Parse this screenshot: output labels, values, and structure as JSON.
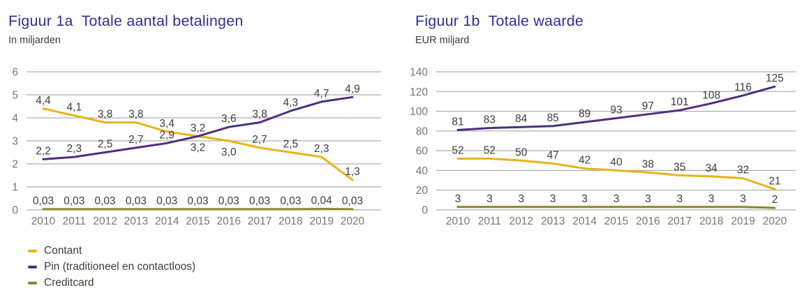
{
  "colors": {
    "title": "#2E3192",
    "text_dark": "#3C3C3B",
    "axis_text": "#767676",
    "gridline": "#9B9B9A",
    "contant": "#E9B319",
    "pin": "#4F2D7F",
    "creditcard": "#8A852C"
  },
  "legend": {
    "items": [
      {
        "label": "Contant",
        "color": "#E9B319"
      },
      {
        "label": "Pin (traditioneel en contactloos)",
        "color": "#4F2D7F"
      },
      {
        "label": "Creditcard",
        "color": "#8A852C"
      }
    ]
  },
  "chart_data": [
    {
      "type": "line",
      "title": "Figuur 1a  Totale aantal betalingen",
      "subtitle": "In miljarden",
      "xlabel": "",
      "ylabel": "In miljarden",
      "x": [
        "2010",
        "2011",
        "2012",
        "2013",
        "2014",
        "2015",
        "2016",
        "2017",
        "2018",
        "2019",
        "2020"
      ],
      "ylim": [
        0,
        6
      ],
      "ytick_step": 1,
      "grid": true,
      "legend_position": "bottom-left",
      "series": [
        {
          "name": "Contant",
          "color": "#E9B319",
          "values": [
            4.4,
            4.1,
            3.8,
            3.8,
            3.4,
            3.2,
            3.0,
            2.7,
            2.5,
            2.3,
            1.3
          ],
          "labels": [
            "4,4",
            "4,1",
            "3,8",
            "3,8",
            "3,4",
            "3,2",
            "3,0",
            "2,7",
            "2,5",
            "2,3",
            "1,3"
          ],
          "labels_below_indices": [
            5,
            6
          ]
        },
        {
          "name": "Pin (traditioneel en contactloos)",
          "color": "#4F2D7F",
          "values": [
            2.2,
            2.3,
            2.5,
            2.7,
            2.9,
            3.2,
            3.6,
            3.8,
            4.3,
            4.7,
            4.9
          ],
          "labels": [
            "2,2",
            "2,3",
            "2,5",
            "2,7",
            "2,9",
            "3,2",
            "3,6",
            "3,8",
            "4,3",
            "4,7",
            "4,9"
          ],
          "labels_below_indices": []
        },
        {
          "name": "Creditcard",
          "color": "#8A852C",
          "values": [
            0.03,
            0.03,
            0.03,
            0.03,
            0.03,
            0.03,
            0.03,
            0.03,
            0.03,
            0.04,
            0.03
          ],
          "labels": [
            "0,03",
            "0,03",
            "0,03",
            "0,03",
            "0,03",
            "0,03",
            "0,03",
            "0,03",
            "0,03",
            "0,04",
            "0,03"
          ],
          "labels_below_indices": []
        }
      ]
    },
    {
      "type": "line",
      "title": "Figuur 1b  Totale waarde",
      "subtitle": "EUR miljard",
      "xlabel": "",
      "ylabel": "EUR miljard",
      "x": [
        "2010",
        "2011",
        "2012",
        "2013",
        "2014",
        "2015",
        "2016",
        "2017",
        "2018",
        "2019",
        "2020"
      ],
      "ylim": [
        0,
        140
      ],
      "ytick_step": 20,
      "grid": true,
      "legend_position": "shared-with-1a",
      "series": [
        {
          "name": "Contant",
          "color": "#E9B319",
          "values": [
            52,
            52,
            50,
            47,
            42,
            40,
            38,
            35,
            34,
            32,
            21
          ],
          "labels": [
            "52",
            "52",
            "50",
            "47",
            "42",
            "40",
            "38",
            "35",
            "34",
            "32",
            "21"
          ],
          "labels_below_indices": []
        },
        {
          "name": "Pin (traditioneel en contactloos)",
          "color": "#4F2D7F",
          "values": [
            81,
            83,
            84,
            85,
            89,
            93,
            97,
            101,
            108,
            116,
            125
          ],
          "labels": [
            "81",
            "83",
            "84",
            "85",
            "89",
            "93",
            "97",
            "101",
            "108",
            "116",
            "125"
          ],
          "labels_below_indices": []
        },
        {
          "name": "Creditcard",
          "color": "#8A852C",
          "values": [
            3,
            3,
            3,
            3,
            3,
            3,
            3,
            3,
            3,
            3,
            2
          ],
          "labels": [
            "3",
            "3",
            "3",
            "3",
            "3",
            "3",
            "3",
            "3",
            "3",
            "3",
            "2"
          ],
          "labels_below_indices": []
        }
      ]
    }
  ]
}
